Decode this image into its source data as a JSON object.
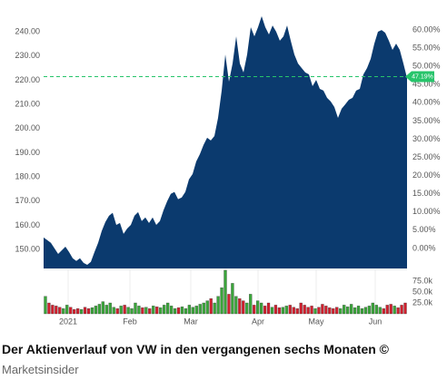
{
  "chart_data": {
    "type": "area",
    "caption": "Der Aktienverlauf von VW in den vergangenen sechs Monaten ©",
    "source": "Marketsinsider",
    "xlim": [
      0,
      100
    ],
    "xticks": [
      {
        "value": 6.75,
        "label": "2021"
      },
      {
        "value": 23.75,
        "label": "Feb"
      },
      {
        "value": 40.5,
        "label": "Mar"
      },
      {
        "value": 59,
        "label": "Apr"
      },
      {
        "value": 75,
        "label": "May"
      },
      {
        "value": 91.25,
        "label": "Jun"
      }
    ],
    "ylim": [
      142.2,
      247.5
    ],
    "yticks": [
      {
        "value": 150,
        "label": "150.00"
      },
      {
        "value": 160,
        "label": "160.00"
      },
      {
        "value": 170,
        "label": "170.00"
      },
      {
        "value": 180,
        "label": "180.00"
      },
      {
        "value": 190,
        "label": "190.00"
      },
      {
        "value": 200,
        "label": "200.00"
      },
      {
        "value": 210,
        "label": "210.00"
      },
      {
        "value": 220,
        "label": "220.00"
      },
      {
        "value": 230,
        "label": "230.00"
      },
      {
        "value": 240,
        "label": "240.00"
      }
    ],
    "y2lim": [
      -5.5,
      64.5
    ],
    "y2ticks": [
      {
        "value": 0,
        "label": "0.00%"
      },
      {
        "value": 5,
        "label": "5.00%"
      },
      {
        "value": 10,
        "label": "10.00%"
      },
      {
        "value": 15,
        "label": "15.00%"
      },
      {
        "value": 20,
        "label": "20.00%"
      },
      {
        "value": 25,
        "label": "25.00%"
      },
      {
        "value": 30,
        "label": "30.00%"
      },
      {
        "value": 35,
        "label": "35.00%"
      },
      {
        "value": 40,
        "label": "40.00%"
      },
      {
        "value": 45,
        "label": "45.00%"
      },
      {
        "value": 50,
        "label": "50.00%"
      },
      {
        "value": 55,
        "label": "55.00%"
      },
      {
        "value": 60,
        "label": "60.00%"
      }
    ],
    "marker": {
      "value": 47.19,
      "label": "47.19%",
      "color": "#27c46b"
    },
    "series": [
      {
        "color": "#0b3a6e",
        "values": [
          155.0,
          153.9,
          152.8,
          150.5,
          148.2,
          149.7,
          151.2,
          149.0,
          146.4,
          145.3,
          146.4,
          144.5,
          143.7,
          144.9,
          149.0,
          152.8,
          157.7,
          161.4,
          164.0,
          165.2,
          160.2,
          161.0,
          156.5,
          158.7,
          160.2,
          164.0,
          165.5,
          161.8,
          163.3,
          161.0,
          163.3,
          160.2,
          161.8,
          166.3,
          170.0,
          173.0,
          173.8,
          170.8,
          171.5,
          173.8,
          179.0,
          181.2,
          186.4,
          189.4,
          193.2,
          196.2,
          195.1,
          196.9,
          204.4,
          215.7,
          230.6,
          219.4,
          226.9,
          238.1,
          226.9,
          223.2,
          230.6,
          241.9,
          238.1,
          241.9,
          246.4,
          241.9,
          238.9,
          242.6,
          240.0,
          236.3,
          238.1,
          242.6,
          236.3,
          230.6,
          226.9,
          225.0,
          223.2,
          222.4,
          217.5,
          220.1,
          216.4,
          215.7,
          212.7,
          211.2,
          208.9,
          204.4,
          208.2,
          210.0,
          211.9,
          212.7,
          215.7,
          216.4,
          222.4,
          225.0,
          228.8,
          235.1,
          240.0,
          240.7,
          239.6,
          236.3,
          232.5,
          235.1,
          232.5,
          226.9,
          220.9
        ]
      }
    ],
    "volume": {
      "up_color": "#3aa53a",
      "down_color": "#d0202e",
      "ylim": [
        0,
        100000
      ],
      "yticks": [
        {
          "value": 25000,
          "label": "25.0k"
        },
        {
          "value": 50000,
          "label": "50.0k"
        },
        {
          "value": 75000,
          "label": "75.0k"
        }
      ],
      "values": [
        40000,
        25000,
        20000,
        18000,
        15000,
        12000,
        20000,
        15000,
        10000,
        12000,
        10000,
        15000,
        12000,
        14000,
        18000,
        22000,
        28000,
        20000,
        25000,
        15000,
        12000,
        18000,
        20000,
        15000,
        12000,
        25000,
        18000,
        14000,
        15000,
        12000,
        18000,
        16000,
        14000,
        20000,
        25000,
        18000,
        12000,
        14000,
        16000,
        12000,
        20000,
        15000,
        18000,
        22000,
        25000,
        30000,
        35000,
        25000,
        40000,
        60000,
        100000,
        45000,
        70000,
        40000,
        35000,
        30000,
        25000,
        45000,
        20000,
        30000,
        25000,
        18000,
        25000,
        15000,
        20000,
        14000,
        15000,
        18000,
        20000,
        15000,
        12000,
        25000,
        20000,
        15000,
        18000,
        12000,
        15000,
        22000,
        18000,
        14000,
        12000,
        15000,
        12000,
        20000,
        16000,
        22000,
        14000,
        18000,
        12000,
        15000,
        18000,
        25000,
        20000,
        15000,
        12000,
        20000,
        22000,
        18000,
        14000,
        20000,
        25000
      ]
    }
  }
}
